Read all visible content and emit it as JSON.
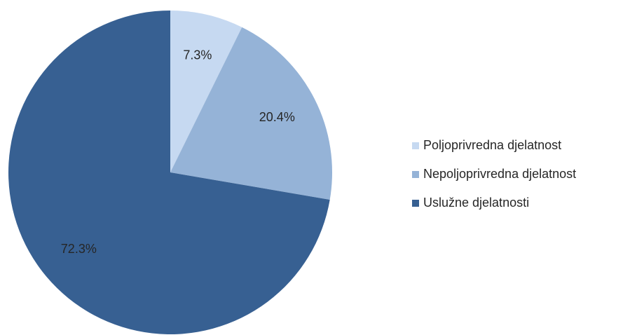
{
  "chart_data": {
    "type": "pie",
    "categories": [
      "Poljoprivredna djelatnost",
      "Nepoljoprivredna djelatnost",
      "Uslužne djelatnosti"
    ],
    "values": [
      7.3,
      20.4,
      72.3
    ],
    "value_labels": [
      "7.3%",
      "20.4%",
      "72.3%"
    ],
    "colors": [
      "#c6d9f1",
      "#95b3d7",
      "#376092"
    ],
    "legend": "right"
  }
}
